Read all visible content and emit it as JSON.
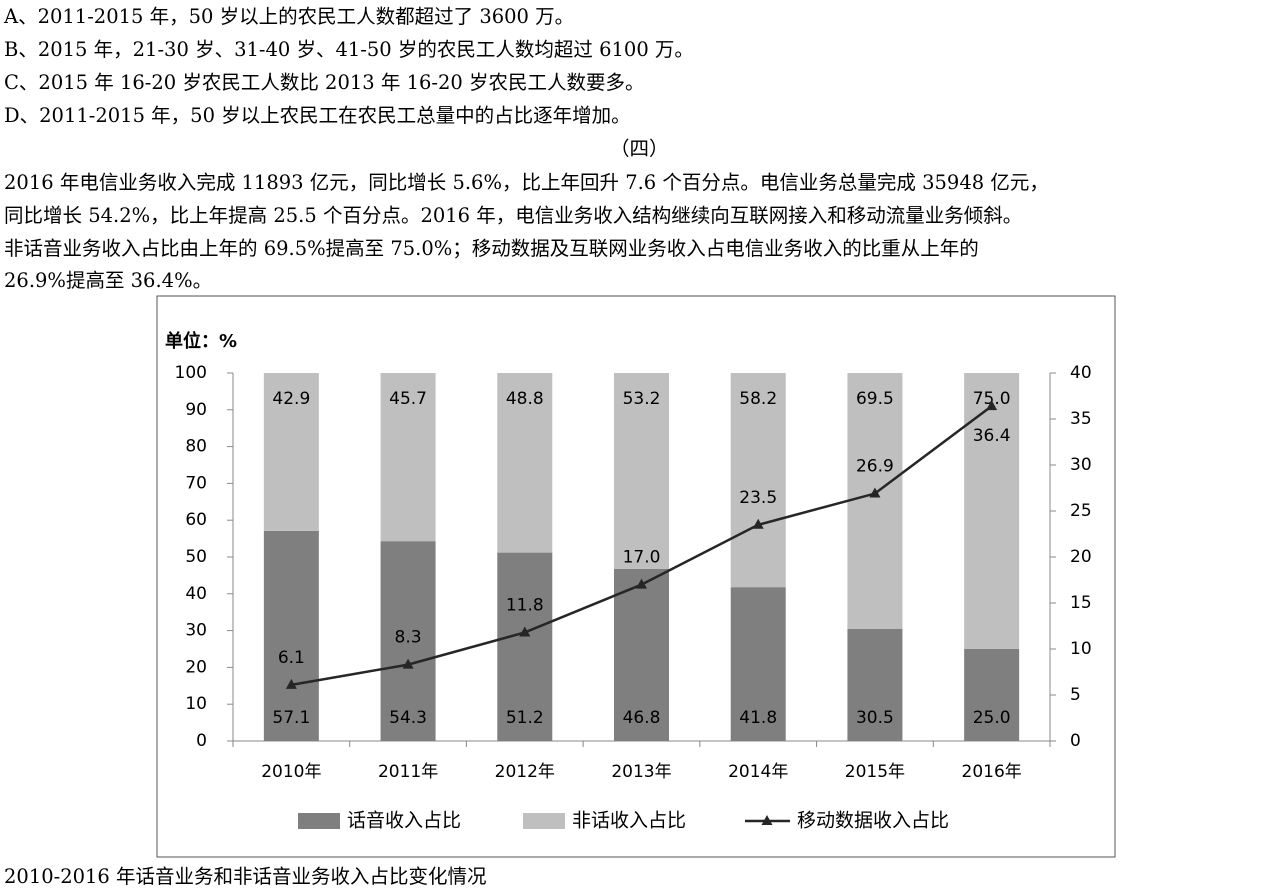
{
  "document": {
    "options": [
      "A、2011-2015 年，50 岁以上的农民工人数都超过了 3600 万。",
      "B、2015 年，21-30 岁、31-40 岁、41-50 岁的农民工人数均超过 6100 万。",
      "C、2015 年 16-20 岁农民工人数比 2013 年 16-20 岁农民工人数要多。",
      "D、2011-2015 年，50 岁以上农民工在农民工总量中的占比逐年增加。"
    ],
    "section_title": "（四）",
    "paragraph": [
      "2016 年电信业务收入完成 11893 亿元，同比增长 5.6%，比上年回升 7.6 个百分点。电信业务总量完成 35948 亿元，",
      "同比增长 54.2%，比上年提高 25.5 个百分点。2016 年，电信业务收入结构继续向互联网接入和移动流量业务倾斜。",
      "非话音业务收入占比由上年的 69.5%提高至 75.0%；移动数据及互联网业务收入占电信业务收入的比重从上年的",
      "26.9%提高至 36.4%。"
    ],
    "caption": "2010-2016 年话音业务和非话音业务收入占比变化情况"
  },
  "chart_data": {
    "type": "bar",
    "title": "单位：%",
    "categories": [
      "2010年",
      "2011年",
      "2012年",
      "2013年",
      "2014年",
      "2015年",
      "2016年"
    ],
    "stacked": true,
    "series": [
      {
        "name": "话音收入占比",
        "type": "bar",
        "color": "#7f7f7f",
        "values": [
          57.1,
          54.3,
          51.2,
          46.8,
          41.8,
          30.5,
          25.0
        ],
        "value_labels": [
          "57.1",
          "54.3",
          "51.2",
          "46.8",
          "41.8",
          "30.5",
          "25.0"
        ]
      },
      {
        "name": "非话收入占比",
        "type": "bar",
        "color": "#bfbfbf",
        "values": [
          42.9,
          45.7,
          48.8,
          53.2,
          58.2,
          69.5,
          75.0
        ],
        "value_labels": [
          "42.9",
          "45.7",
          "48.8",
          "53.2",
          "58.2",
          "69.5",
          "75.0"
        ]
      },
      {
        "name": "移动数据收入占比",
        "type": "line",
        "axis": "y2",
        "color": "#262626",
        "values": [
          6.1,
          8.3,
          11.8,
          17.0,
          23.5,
          26.9,
          36.4
        ],
        "value_labels": [
          "6.1",
          "8.3",
          "11.8",
          "17.0",
          "23.5",
          "26.9",
          "36.4"
        ]
      }
    ],
    "ylim": [
      0,
      100
    ],
    "yticks": [
      0,
      10,
      20,
      30,
      40,
      50,
      60,
      70,
      80,
      90,
      100
    ],
    "y2lim": [
      0,
      40
    ],
    "y2ticks": [
      0,
      5,
      10,
      15,
      20,
      25,
      30,
      35,
      40
    ],
    "grid": false,
    "legend": "bottom"
  }
}
